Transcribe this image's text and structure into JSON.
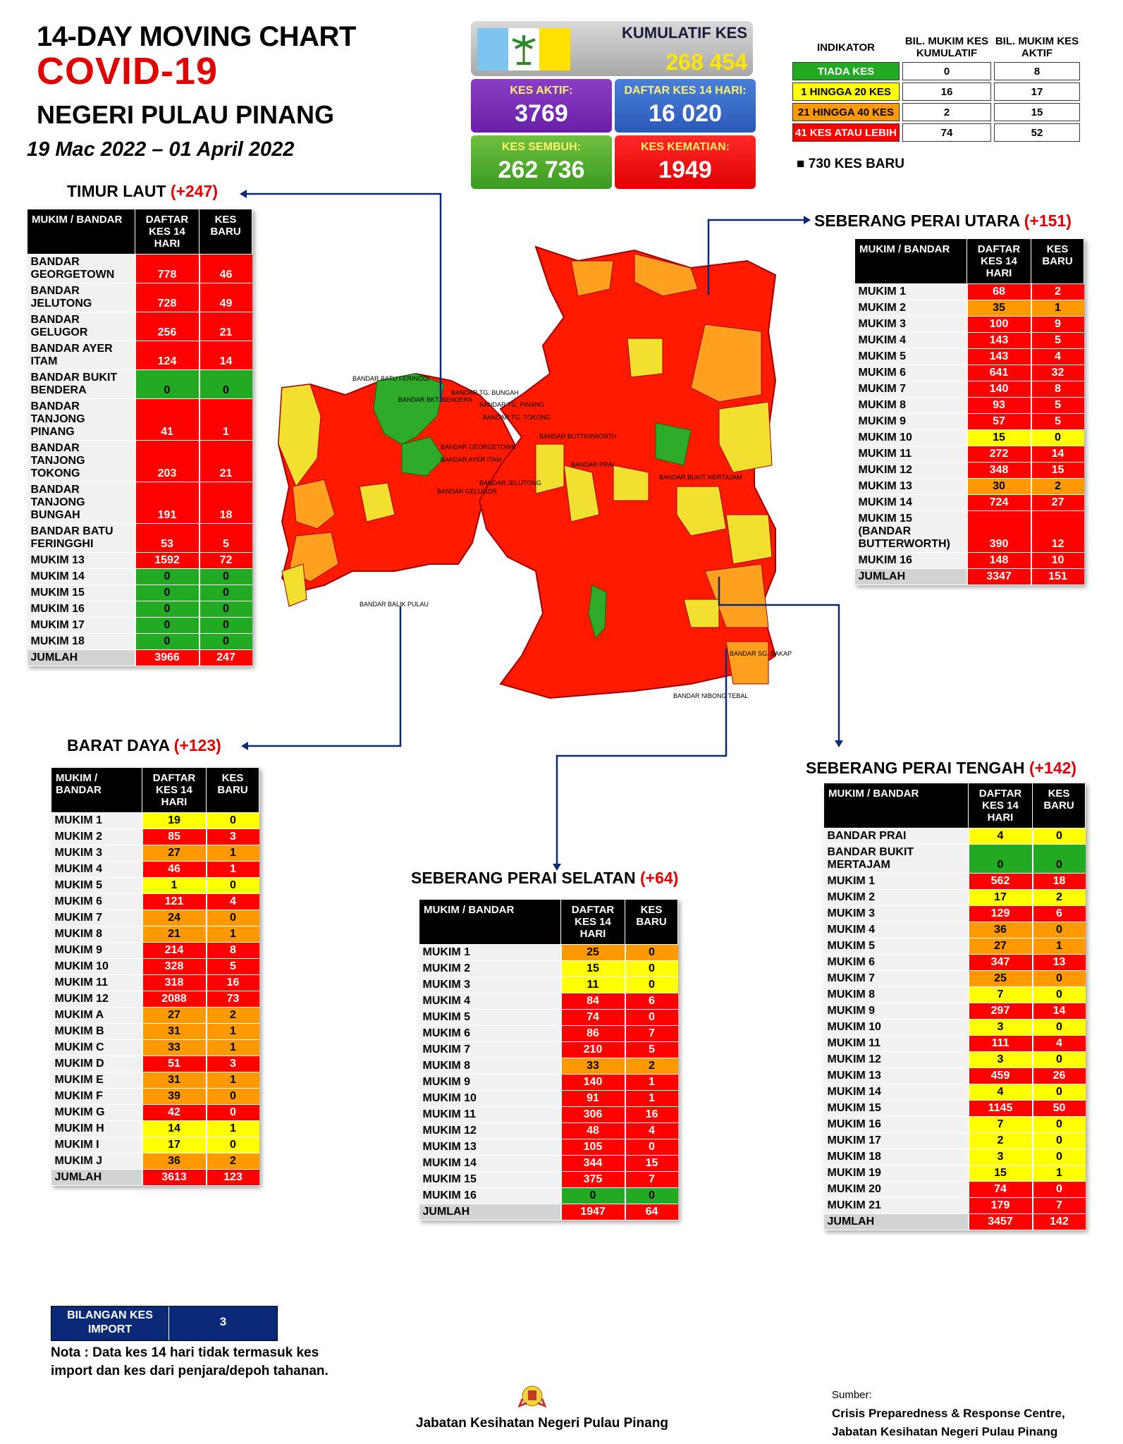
{
  "header": {
    "line1": "14-DAY MOVING CHART",
    "line2": "COVID-19",
    "line3": "NEGERI PULAU PINANG",
    "date_range": "19 Mac 2022 – 01 April 2022"
  },
  "stats": {
    "kumulatif_label": "KUMULATIF KES",
    "kumulatif_value": "268 454",
    "aktif_label": "KES AKTIF:",
    "aktif_value": "3769",
    "daftar_label": "DAFTAR KES 14 HARI:",
    "daftar_value": "16 020",
    "sembuh_label": "KES SEMBUH:",
    "sembuh_value": "262 736",
    "kematian_label": "KES KEMATIAN:",
    "kematian_value": "1949"
  },
  "indicator": {
    "h1": "INDIKATOR",
    "h2": "BIL. MUKIM KES KUMULATIF",
    "h3": "BIL. MUKIM KES AKTIF",
    "rows": [
      {
        "label": "TIADA KES",
        "kum": "0",
        "akt": "8",
        "color": "#22aa22"
      },
      {
        "label": "1 HINGGA 20 KES",
        "kum": "16",
        "akt": "17",
        "color": "#ffff00"
      },
      {
        "label": "21 HINGGA 40 KES",
        "kum": "2",
        "akt": "15",
        "color": "#ff9900"
      },
      {
        "label": "41 KES ATAU LEBIH",
        "kum": "74",
        "akt": "52",
        "color": "#ff0000"
      }
    ],
    "kes_baru": "730 KES BARU"
  },
  "regions": {
    "timur_laut": {
      "title": "TIMUR LAUT",
      "add": "(+247)",
      "h1": "MUKIM / BANDAR",
      "h2": "DAFTAR KES 14 HARI",
      "h3": "KES BARU",
      "rows": [
        [
          "BANDAR GEORGETOWN",
          "778",
          "46",
          "red",
          "red"
        ],
        [
          "BANDAR JELUTONG",
          "728",
          "49",
          "red",
          "red"
        ],
        [
          "BANDAR GELUGOR",
          "256",
          "21",
          "red",
          "red"
        ],
        [
          "BANDAR AYER ITAM",
          "124",
          "14",
          "red",
          "red"
        ],
        [
          "BANDAR BUKIT BENDERA",
          "0",
          "0",
          "grn",
          "grn"
        ],
        [
          "BANDAR TANJONG PINANG",
          "41",
          "1",
          "red",
          "red"
        ],
        [
          "BANDAR TANJONG TOKONG",
          "203",
          "21",
          "red",
          "red"
        ],
        [
          "BANDAR TANJONG BUNGAH",
          "191",
          "18",
          "red",
          "red"
        ],
        [
          "BANDAR BATU FERINGGHI",
          "53",
          "5",
          "red",
          "red"
        ],
        [
          "MUKIM 13",
          "1592",
          "72",
          "red",
          "red"
        ],
        [
          "MUKIM 14",
          "0",
          "0",
          "grn",
          "grn"
        ],
        [
          "MUKIM 15",
          "0",
          "0",
          "grn",
          "grn"
        ],
        [
          "MUKIM 16",
          "0",
          "0",
          "grn",
          "grn"
        ],
        [
          "MUKIM 17",
          "0",
          "0",
          "grn",
          "grn"
        ],
        [
          "MUKIM 18",
          "0",
          "0",
          "grn",
          "grn"
        ]
      ],
      "total": [
        "JUMLAH",
        "3966",
        "247"
      ]
    },
    "barat_daya": {
      "title": "BARAT DAYA",
      "add": "(+123)",
      "h1": "MUKIM / BANDAR",
      "h2": "DAFTAR KES 14 HARI",
      "h3": "KES BARU",
      "rows": [
        [
          "MUKIM 1",
          "19",
          "0",
          "yel",
          "yel"
        ],
        [
          "MUKIM 2",
          "85",
          "3",
          "red",
          "red"
        ],
        [
          "MUKIM 3",
          "27",
          "1",
          "ora",
          "ora"
        ],
        [
          "MUKIM 4",
          "46",
          "1",
          "red",
          "red"
        ],
        [
          "MUKIM 5",
          "1",
          "0",
          "yel",
          "yel"
        ],
        [
          "MUKIM 6",
          "121",
          "4",
          "red",
          "red"
        ],
        [
          "MUKIM 7",
          "24",
          "0",
          "ora",
          "ora"
        ],
        [
          "MUKIM 8",
          "21",
          "1",
          "ora",
          "ora"
        ],
        [
          "MUKIM 9",
          "214",
          "8",
          "red",
          "red"
        ],
        [
          "MUKIM 10",
          "328",
          "5",
          "red",
          "red"
        ],
        [
          "MUKIM 11",
          "318",
          "16",
          "red",
          "red"
        ],
        [
          "MUKIM 12",
          "2088",
          "73",
          "red",
          "red"
        ],
        [
          "MUKIM A",
          "27",
          "2",
          "ora",
          "ora"
        ],
        [
          "MUKIM B",
          "31",
          "1",
          "ora",
          "ora"
        ],
        [
          "MUKIM C",
          "33",
          "1",
          "ora",
          "ora"
        ],
        [
          "MUKIM D",
          "51",
          "3",
          "red",
          "red"
        ],
        [
          "MUKIM E",
          "31",
          "1",
          "ora",
          "ora"
        ],
        [
          "MUKIM F",
          "39",
          "0",
          "ora",
          "ora"
        ],
        [
          "MUKIM G",
          "42",
          "0",
          "red",
          "red"
        ],
        [
          "MUKIM H",
          "14",
          "1",
          "yel",
          "yel"
        ],
        [
          "MUKIM I",
          "17",
          "0",
          "yel",
          "yel"
        ],
        [
          "MUKIM J",
          "36",
          "2",
          "ora",
          "ora"
        ]
      ],
      "total": [
        "JUMLAH",
        "3613",
        "123"
      ]
    },
    "sp_utara": {
      "title": "SEBERANG PERAI UTARA",
      "add": "(+151)",
      "h1": "MUKIM / BANDAR",
      "h2": "DAFTAR KES 14 HARI",
      "h3": "KES BARU",
      "rows": [
        [
          "MUKIM 1",
          "68",
          "2",
          "red",
          "red"
        ],
        [
          "MUKIM 2",
          "35",
          "1",
          "ora",
          "ora"
        ],
        [
          "MUKIM 3",
          "100",
          "9",
          "red",
          "red"
        ],
        [
          "MUKIM 4",
          "143",
          "5",
          "red",
          "red"
        ],
        [
          "MUKIM 5",
          "143",
          "4",
          "red",
          "red"
        ],
        [
          "MUKIM 6",
          "641",
          "32",
          "red",
          "red"
        ],
        [
          "MUKIM 7",
          "140",
          "8",
          "red",
          "red"
        ],
        [
          "MUKIM 8",
          "93",
          "5",
          "red",
          "red"
        ],
        [
          "MUKIM 9",
          "57",
          "5",
          "red",
          "red"
        ],
        [
          "MUKIM 10",
          "15",
          "0",
          "yel",
          "yel"
        ],
        [
          "MUKIM 11",
          "272",
          "14",
          "red",
          "red"
        ],
        [
          "MUKIM 12",
          "348",
          "15",
          "red",
          "red"
        ],
        [
          "MUKIM 13",
          "30",
          "2",
          "ora",
          "ora"
        ],
        [
          "MUKIM 14",
          "724",
          "27",
          "red",
          "red"
        ],
        [
          "MUKIM 15 (BANDAR BUTTERWORTH)",
          "390",
          "12",
          "red",
          "red"
        ],
        [
          "MUKIM 16",
          "148",
          "10",
          "red",
          "red"
        ]
      ],
      "total": [
        "JUMLAH",
        "3347",
        "151"
      ]
    },
    "sp_tengah": {
      "title": "SEBERANG PERAI TENGAH",
      "add": "(+142)",
      "h1": "MUKIM / BANDAR",
      "h2": "DAFTAR KES 14 HARI",
      "h3": "KES BARU",
      "rows": [
        [
          "BANDAR PRAI",
          "4",
          "0",
          "yel",
          "yel"
        ],
        [
          "BANDAR BUKIT MERTAJAM",
          "0",
          "0",
          "grn",
          "grn"
        ],
        [
          "MUKIM 1",
          "562",
          "18",
          "red",
          "red"
        ],
        [
          "MUKIM 2",
          "17",
          "2",
          "yel",
          "yel"
        ],
        [
          "MUKIM 3",
          "129",
          "6",
          "red",
          "red"
        ],
        [
          "MUKIM 4",
          "36",
          "0",
          "ora",
          "ora"
        ],
        [
          "MUKIM 5",
          "27",
          "1",
          "ora",
          "ora"
        ],
        [
          "MUKIM 6",
          "347",
          "13",
          "red",
          "red"
        ],
        [
          "MUKIM 7",
          "25",
          "0",
          "ora",
          "ora"
        ],
        [
          "MUKIM 8",
          "7",
          "0",
          "yel",
          "yel"
        ],
        [
          "MUKIM 9",
          "297",
          "14",
          "red",
          "red"
        ],
        [
          "MUKIM 10",
          "3",
          "0",
          "yel",
          "yel"
        ],
        [
          "MUKIM 11",
          "111",
          "4",
          "red",
          "red"
        ],
        [
          "MUKIM 12",
          "3",
          "0",
          "yel",
          "yel"
        ],
        [
          "MUKIM 13",
          "459",
          "26",
          "red",
          "red"
        ],
        [
          "MUKIM 14",
          "4",
          "0",
          "yel",
          "yel"
        ],
        [
          "MUKIM 15",
          "1145",
          "50",
          "red",
          "red"
        ],
        [
          "MUKIM 16",
          "7",
          "0",
          "yel",
          "yel"
        ],
        [
          "MUKIM 17",
          "2",
          "0",
          "yel",
          "yel"
        ],
        [
          "MUKIM 18",
          "3",
          "0",
          "yel",
          "yel"
        ],
        [
          "MUKIM 19",
          "15",
          "1",
          "yel",
          "yel"
        ],
        [
          "MUKIM 20",
          "74",
          "0",
          "red",
          "red"
        ],
        [
          "MUKIM 21",
          "179",
          "7",
          "red",
          "red"
        ]
      ],
      "total": [
        "JUMLAH",
        "3457",
        "142"
      ]
    },
    "sp_selatan": {
      "title": "SEBERANG PERAI SELATAN",
      "add": "(+64)",
      "h1": "MUKIM / BANDAR",
      "h2": "DAFTAR KES 14 HARI",
      "h3": "KES BARU",
      "rows": [
        [
          "MUKIM 1",
          "25",
          "0",
          "ora",
          "ora"
        ],
        [
          "MUKIM 2",
          "15",
          "0",
          "yel",
          "yel"
        ],
        [
          "MUKIM 3",
          "11",
          "0",
          "yel",
          "yel"
        ],
        [
          "MUKIM 4",
          "84",
          "6",
          "red",
          "red"
        ],
        [
          "MUKIM 5",
          "74",
          "0",
          "red",
          "red"
        ],
        [
          "MUKIM 6",
          "86",
          "7",
          "red",
          "red"
        ],
        [
          "MUKIM 7",
          "210",
          "5",
          "red",
          "red"
        ],
        [
          "MUKIM 8",
          "33",
          "2",
          "ora",
          "ora"
        ],
        [
          "MUKIM 9",
          "140",
          "1",
          "red",
          "red"
        ],
        [
          "MUKIM 10",
          "91",
          "1",
          "red",
          "red"
        ],
        [
          "MUKIM 11",
          "306",
          "16",
          "red",
          "red"
        ],
        [
          "MUKIM 12",
          "48",
          "4",
          "red",
          "red"
        ],
        [
          "MUKIM 13",
          "105",
          "0",
          "red",
          "red"
        ],
        [
          "MUKIM 14",
          "344",
          "15",
          "red",
          "red"
        ],
        [
          "MUKIM 15",
          "375",
          "7",
          "red",
          "red"
        ],
        [
          "MUKIM 16",
          "0",
          "0",
          "grn",
          "grn"
        ]
      ],
      "total": [
        "JUMLAH",
        "1947",
        "64"
      ]
    }
  },
  "import": {
    "label": "BILANGAN KES IMPORT",
    "value": "3"
  },
  "nota": "Nota : Data kes 14 hari tidak termasuk kes import dan kes dari penjara/depoh tahanan.",
  "footer": "Jabatan Kesihatan Negeri Pulau Pinang",
  "sumber": {
    "label": "Sumber:",
    "line1": "Crisis Preparedness & Response Centre,",
    "line2": "Jabatan Kesihatan Negeri Pulau Pinang"
  },
  "map_labels": {
    "batu_feringgi": "BANDAR BATU FERINGGI",
    "tg_bungah": "BANDAR TG. BUNGAH",
    "tg_pinang": "BANDAR TG. PINANG",
    "tg_tokong": "BANDAR TG. TOKONG",
    "bkt_bendera": "BANDAR BKT. BENDERA",
    "georgetown": "BANDAR GEORGETOWN",
    "ayer_itam": "BANDAR AYER ITAM",
    "jelutong": "BANDAR JELUTONG",
    "gelugor": "BANDAR GELUGOR",
    "butterworth": "BANDAR BUTTERWORTH",
    "prai": "BANDAR PRAI",
    "bukit_mertajam": "BANDAR BUKIT MERTAJAM",
    "sg_bakap": "BANDAR SG. BAKAP",
    "nibong_tebal": "BANDAR NIBONG TEBAL",
    "balik_pulau": "BANDAR BALIK PULAU"
  }
}
